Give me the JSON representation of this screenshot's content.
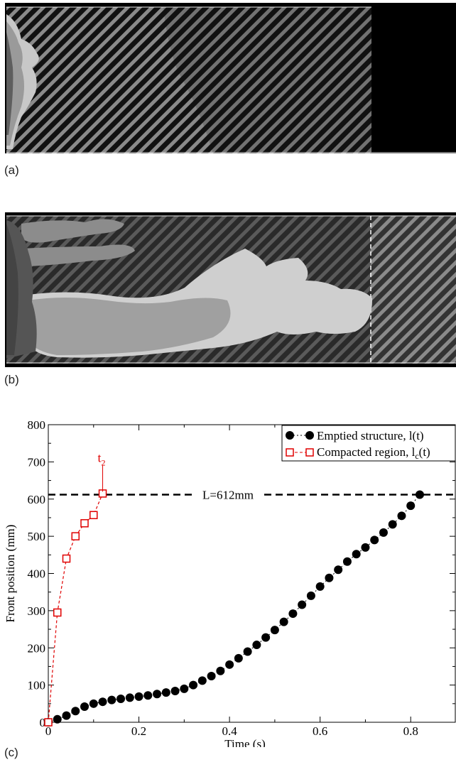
{
  "panels": {
    "a": {
      "label": "(a)"
    },
    "b": {
      "label": "(b)"
    },
    "c": {
      "label": "(c)"
    }
  },
  "chart_data": {
    "type": "scatter",
    "xlabel": "Time (s)",
    "ylabel": "Front position (mm)",
    "xlim": [
      0,
      0.9
    ],
    "ylim": [
      0,
      800
    ],
    "xticks": [
      0,
      0.2,
      0.4,
      0.6,
      0.8
    ],
    "xtick_labels": [
      "0",
      "0.2",
      "0.4",
      "0.6",
      "0.8"
    ],
    "yticks": [
      0,
      100,
      200,
      300,
      400,
      500,
      600,
      700,
      800
    ],
    "ytick_labels": [
      "0",
      "100",
      "200",
      "300",
      "400",
      "500",
      "600",
      "700",
      "800"
    ],
    "grid": false,
    "legend_position": "top-right",
    "reference_line": {
      "y": 612,
      "label": "L=612mm"
    },
    "annotation": {
      "text_main": "t",
      "text_sub": "2",
      "x": 0.12
    },
    "series": [
      {
        "name": "Emptied structure, l(t)",
        "color": "#000000",
        "marker": "filled-circle",
        "x": [
          0.0,
          0.02,
          0.04,
          0.06,
          0.08,
          0.1,
          0.12,
          0.14,
          0.16,
          0.18,
          0.2,
          0.22,
          0.24,
          0.26,
          0.28,
          0.3,
          0.32,
          0.34,
          0.36,
          0.38,
          0.4,
          0.42,
          0.44,
          0.46,
          0.48,
          0.5,
          0.52,
          0.54,
          0.56,
          0.58,
          0.6,
          0.62,
          0.64,
          0.66,
          0.68,
          0.7,
          0.72,
          0.74,
          0.76,
          0.78,
          0.8,
          0.82
        ],
        "y": [
          0,
          8,
          18,
          30,
          42,
          50,
          55,
          60,
          63,
          66,
          69,
          72,
          76,
          80,
          84,
          90,
          100,
          112,
          124,
          138,
          155,
          172,
          190,
          208,
          228,
          248,
          270,
          292,
          316,
          340,
          365,
          388,
          410,
          432,
          452,
          470,
          490,
          510,
          532,
          555,
          582,
          612
        ]
      },
      {
        "name_main": "Compacted region, l",
        "name_sub": "c",
        "name_tail": "(t)",
        "color": "#e00000",
        "marker": "open-square",
        "line": "dashed",
        "x": [
          0.0,
          0.02,
          0.04,
          0.06,
          0.08,
          0.1,
          0.12
        ],
        "y": [
          0,
          295,
          440,
          500,
          535,
          557,
          615
        ]
      }
    ]
  }
}
